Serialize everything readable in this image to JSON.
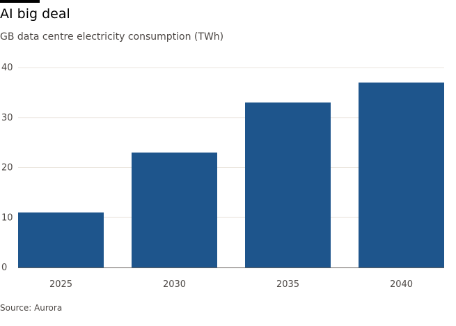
{
  "title": "AI big deal",
  "subtitle": "GB data centre electricity consumption (TWh)",
  "source": "Source: Aurora",
  "colors": {
    "bar": "#1e558c",
    "gridline": "#ebe6df",
    "baseline": "#66605c"
  },
  "chart_data": {
    "type": "bar",
    "title": "AI big deal",
    "subtitle": "GB data centre electricity consumption (TWh)",
    "categories": [
      "2025",
      "2030",
      "2035",
      "2040"
    ],
    "values": [
      11,
      23,
      33,
      37
    ],
    "xlabel": "",
    "ylabel": "",
    "ylim": [
      0,
      40
    ],
    "yticks": [
      0,
      10,
      20,
      30,
      40
    ],
    "grid": true,
    "legend": "none"
  }
}
